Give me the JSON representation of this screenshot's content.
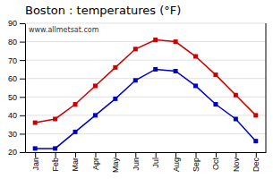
{
  "chart_data": {
    "type": "line",
    "title": "Boston : temperatures (°F)",
    "categories": [
      "Jan",
      "Feb",
      "Mar",
      "Apr",
      "May",
      "Jun",
      "Jul",
      "Aug",
      "Sep",
      "Oct",
      "Nov",
      "Dec"
    ],
    "series": [
      {
        "color": "#cc0000",
        "marker": "square",
        "values": [
          36,
          38,
          46,
          56,
          66,
          76,
          81,
          80,
          72,
          62,
          51,
          40
        ]
      },
      {
        "color": "#0000cc",
        "marker": "square",
        "values": [
          22,
          22,
          31,
          40,
          49,
          59,
          65,
          64,
          56,
          46,
          38,
          26
        ]
      }
    ],
    "ylim": [
      20,
      90
    ],
    "yticks": [
      20,
      30,
      40,
      50,
      60,
      70,
      80,
      90
    ],
    "grid": true,
    "annotations": [
      "www.allmetsat.com"
    ]
  }
}
